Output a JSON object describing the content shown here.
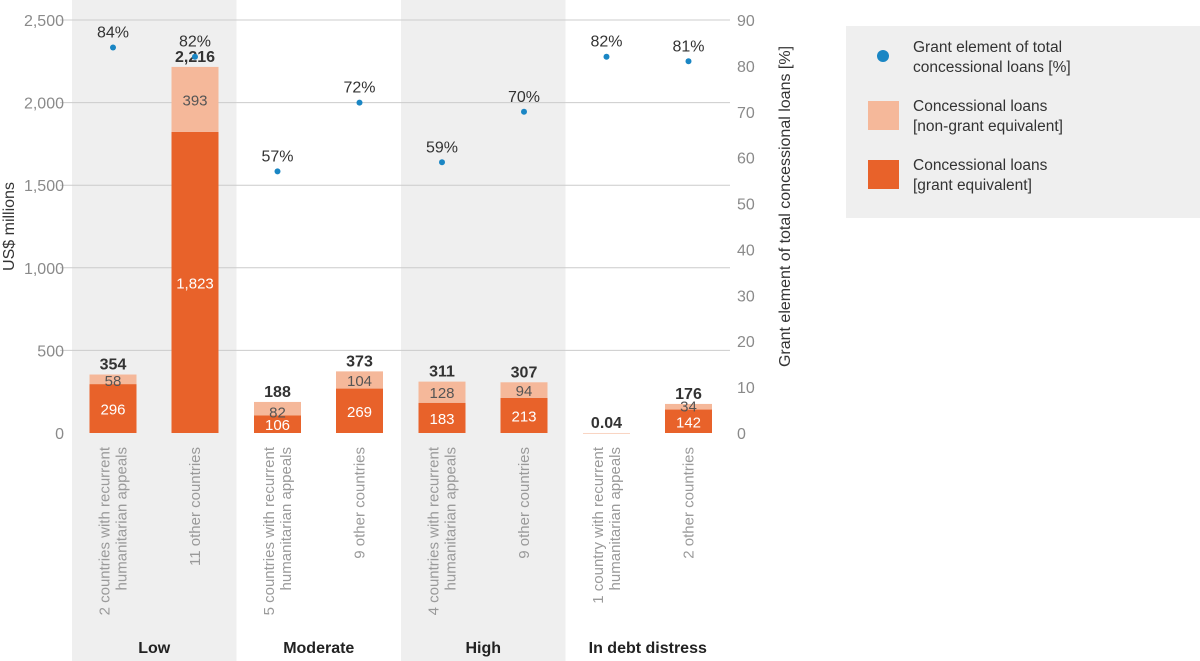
{
  "chart_data": {
    "type": "bar",
    "stacked": true,
    "y_left": {
      "label": "US$ millions",
      "ylim": [
        0,
        2500
      ],
      "ticks": [
        "0",
        "500",
        "1,000",
        "1,500",
        "2,000",
        "2,500"
      ],
      "tick_values": [
        0,
        500,
        1000,
        1500,
        2000,
        2500
      ]
    },
    "y_right": {
      "label": "Grant element of total concessional loans [%]",
      "ylim": [
        0,
        90
      ],
      "ticks": [
        "0",
        "10",
        "20",
        "30",
        "40",
        "50",
        "60",
        "70",
        "80",
        "90"
      ],
      "tick_values": [
        0,
        10,
        20,
        30,
        40,
        50,
        60,
        70,
        80,
        90
      ]
    },
    "groups": [
      {
        "label": "Low",
        "shaded": true
      },
      {
        "label": "Moderate",
        "shaded": false
      },
      {
        "label": "High",
        "shaded": true
      },
      {
        "label": "In debt distress",
        "shaded": false
      }
    ],
    "categories": [
      {
        "label": "2 countries with recurrent\nhumanitarian appeals",
        "group": 0
      },
      {
        "label": "11 other countries",
        "group": 0
      },
      {
        "label": "5 countries with recurrent\nhumanitarian appeals",
        "group": 1
      },
      {
        "label": "9 other countries",
        "group": 1
      },
      {
        "label": "4 countries with recurrent\nhumanitarian appeals",
        "group": 2
      },
      {
        "label": "9 other countries",
        "group": 2
      },
      {
        "label": "1 country with recurrent\nhumanitarian appeals",
        "group": 3
      },
      {
        "label": "2 other countries",
        "group": 3
      }
    ],
    "series": [
      {
        "name": "Concessional loans\n[grant equivalent]",
        "color": "#e8622a",
        "values": [
          296,
          1823,
          106,
          269,
          183,
          213,
          0,
          142
        ],
        "labels": [
          "296",
          "1,823",
          "106",
          "269",
          "183",
          "213",
          "",
          "142"
        ]
      },
      {
        "name": "Concessional loans\n[non-grant equivalent]",
        "color": "#f5b89a",
        "values": [
          58,
          393,
          82,
          104,
          128,
          94,
          0.04,
          34
        ],
        "labels": [
          "58",
          "393",
          "82",
          "104",
          "128",
          "94",
          "",
          "34"
        ]
      }
    ],
    "totals": [
      "354",
      "2,216",
      "188",
      "373",
      "311",
      "307",
      "0.04",
      "176"
    ],
    "total_values": [
      354,
      2216,
      188,
      373,
      311,
      307,
      0.04,
      176
    ],
    "grant_element": {
      "name": "Grant element of total\nconcessional loans [%]",
      "color": "#1a86c4",
      "values": [
        84,
        82,
        57,
        72,
        59,
        70,
        82,
        81
      ],
      "labels": [
        "84%",
        "82%",
        "57%",
        "72%",
        "59%",
        "70%",
        "82%",
        "81%"
      ]
    },
    "grid": true,
    "legend_position": "top-right"
  },
  "colors": {
    "group_shade": "#efefef",
    "grid": "#cccccc",
    "tick_text": "#8a8a8a",
    "category_text": "#9a9a9a",
    "value_text": "#333333",
    "inside_label_light": "#ffffff",
    "inside_label_dark": "#555555"
  }
}
